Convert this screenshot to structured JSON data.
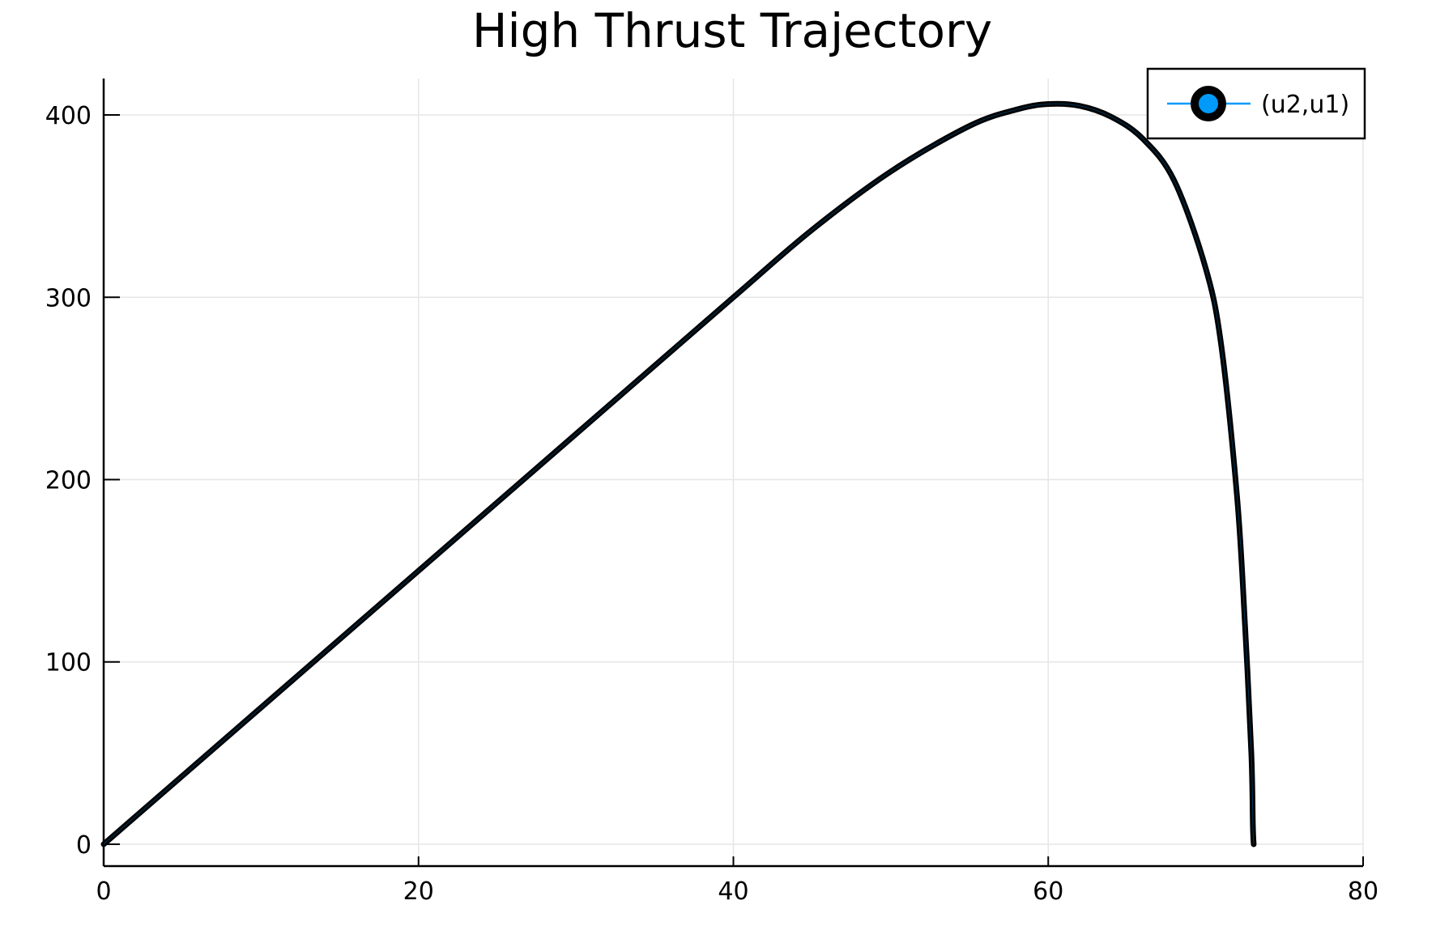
{
  "chart_data": {
    "type": "line",
    "title": "High Thrust Trajectory",
    "xlabel": "",
    "ylabel": "",
    "xlim": [
      0,
      80
    ],
    "ylim": [
      -12,
      420
    ],
    "x_ticks": [
      0,
      20,
      40,
      60,
      80
    ],
    "y_ticks": [
      0,
      100,
      200,
      300,
      400
    ],
    "x_tick_labels": [
      "0",
      "20",
      "40",
      "60",
      "80"
    ],
    "y_tick_labels": [
      "0",
      "100",
      "200",
      "300",
      "400"
    ],
    "grid": true,
    "legend_position": "top-right",
    "series": [
      {
        "name": "(u2,u1)",
        "color": "#009AFA",
        "marker_color": "#009AFA",
        "marker_stroke": "#000000",
        "x": [
          0,
          10,
          20,
          30,
          40,
          45,
          50,
          55,
          58,
          60,
          62,
          64,
          66,
          68,
          70,
          71,
          72,
          72.5,
          72.9,
          73.0,
          73.05
        ],
        "y": [
          0,
          75,
          150,
          225,
          300,
          337,
          369,
          394,
          403,
          406,
          405,
          399,
          387,
          364,
          316,
          273,
          190,
          120,
          50,
          10,
          0
        ]
      }
    ]
  }
}
